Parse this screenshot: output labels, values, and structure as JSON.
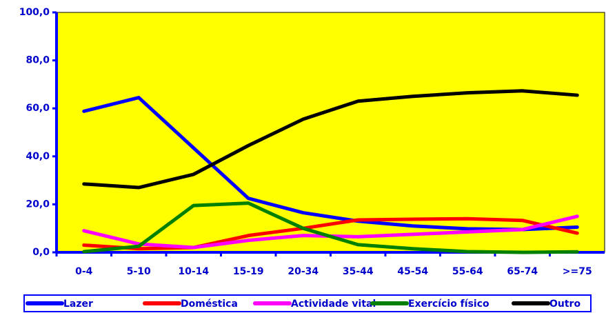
{
  "chart_data": {
    "type": "line",
    "categories": [
      "0-4",
      "5-10",
      "10-14",
      "15-19",
      "20-34",
      "35-44",
      "45-54",
      "55-64",
      "65-74",
      ">=75"
    ],
    "series": [
      {
        "name": "Lazer",
        "color": "#0000ff",
        "values": [
          58.8,
          64.5,
          43.5,
          22.5,
          16.5,
          13,
          11,
          9.8,
          9.5,
          10.5
        ]
      },
      {
        "name": "Doméstica",
        "color": "#ff0000",
        "values": [
          3,
          1.5,
          2,
          7,
          10,
          13.5,
          13.8,
          14,
          13.3,
          8
        ]
      },
      {
        "name": "Actividade vital",
        "color": "#ff00ff",
        "values": [
          9,
          3.5,
          2,
          5,
          7,
          6.5,
          7.5,
          8.5,
          9.5,
          15
        ]
      },
      {
        "name": "Exercício físico",
        "color": "#008000",
        "values": [
          0.3,
          2.5,
          19.5,
          20.5,
          10,
          3.2,
          1.5,
          0.3,
          0,
          0.2
        ]
      },
      {
        "name": "Outro",
        "color": "#000000",
        "values": [
          28.5,
          27,
          32.5,
          44.5,
          55.5,
          63,
          65,
          66.5,
          67.3,
          65.5
        ]
      }
    ],
    "ylim": [
      0,
      100
    ],
    "yticks": [
      {
        "value": 0,
        "label": "0,0"
      },
      {
        "value": 20,
        "label": "20,0"
      },
      {
        "value": 40,
        "label": "40,0"
      },
      {
        "value": 60,
        "label": "60,0"
      },
      {
        "value": 80,
        "label": "80,0"
      },
      {
        "value": 100,
        "label": "100,0"
      }
    ],
    "plot_background": "#ffff00",
    "axis_color": "#0000ff"
  }
}
